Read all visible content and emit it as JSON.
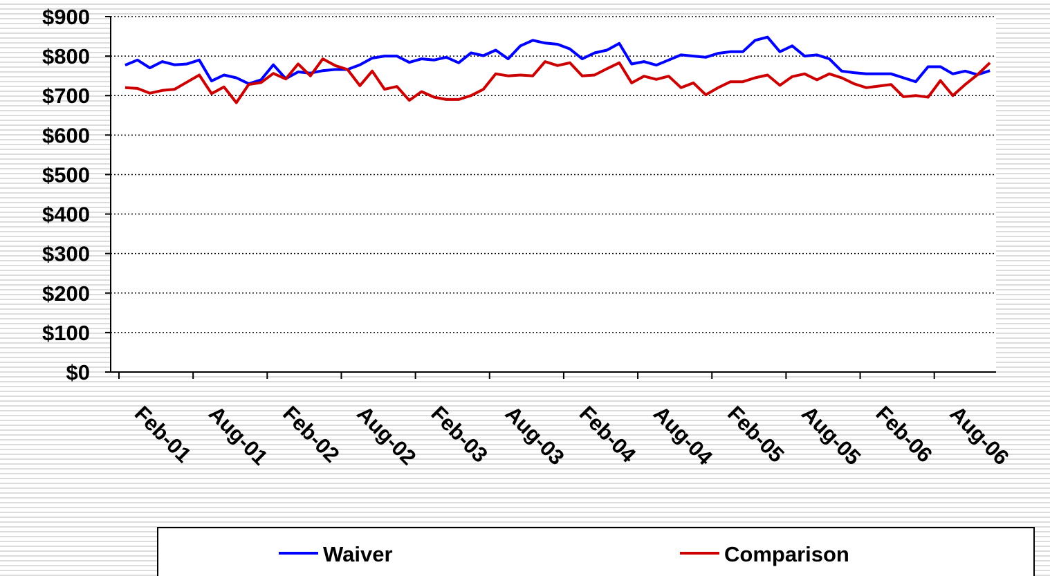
{
  "chart_data": {
    "type": "line",
    "categories": [
      null,
      "Feb-01",
      null,
      null,
      null,
      null,
      null,
      "Aug-01",
      null,
      null,
      null,
      null,
      null,
      "Feb-02",
      null,
      null,
      null,
      null,
      null,
      "Aug-02",
      null,
      null,
      null,
      null,
      null,
      "Feb-03",
      null,
      null,
      null,
      null,
      null,
      "Aug-03",
      null,
      null,
      null,
      null,
      null,
      "Feb-04",
      null,
      null,
      null,
      null,
      null,
      "Aug-04",
      null,
      null,
      null,
      null,
      null,
      "Feb-05",
      null,
      null,
      null,
      null,
      null,
      "Aug-05",
      null,
      null,
      null,
      null,
      null,
      "Feb-06",
      null,
      null,
      null,
      null,
      null,
      "Aug-06",
      null,
      null,
      null
    ],
    "series": [
      {
        "name": "Waiver",
        "color": "#0000ff",
        "values": [
          777,
          790,
          770,
          786,
          778,
          780,
          790,
          737,
          752,
          745,
          730,
          740,
          778,
          743,
          760,
          757,
          763,
          766,
          766,
          778,
          795,
          800,
          800,
          784,
          793,
          790,
          797,
          783,
          808,
          801,
          815,
          793,
          826,
          840,
          833,
          830,
          818,
          793,
          808,
          815,
          832,
          780,
          786,
          777,
          790,
          803,
          800,
          797,
          807,
          811,
          811,
          840,
          848,
          811,
          826,
          800,
          803,
          793,
          762,
          758,
          755,
          755,
          755,
          745,
          735,
          773,
          773,
          755,
          762,
          753,
          763
        ]
      },
      {
        "name": "Comparison",
        "color": "#cc0000",
        "values": [
          720,
          718,
          706,
          713,
          716,
          734,
          752,
          705,
          722,
          682,
          728,
          733,
          756,
          742,
          780,
          750,
          793,
          776,
          766,
          725,
          762,
          716,
          723,
          688,
          710,
          696,
          690,
          690,
          700,
          716,
          755,
          750,
          752,
          750,
          786,
          776,
          783,
          750,
          752,
          768,
          783,
          732,
          749,
          741,
          749,
          720,
          732,
          702,
          720,
          735,
          735,
          745,
          752,
          726,
          748,
          755,
          740,
          755,
          745,
          730,
          720,
          724,
          728,
          697,
          700,
          696,
          738,
          700,
          728,
          753,
          783
        ]
      }
    ],
    "ylim": [
      0,
      900
    ],
    "yticks": [
      {
        "value": 0,
        "label": "$0"
      },
      {
        "value": 100,
        "label": "$100"
      },
      {
        "value": 200,
        "label": "$200"
      },
      {
        "value": 300,
        "label": "$300"
      },
      {
        "value": 400,
        "label": "$400"
      },
      {
        "value": 500,
        "label": "$500"
      },
      {
        "value": 600,
        "label": "$600"
      },
      {
        "value": 700,
        "label": "$700"
      },
      {
        "value": 800,
        "label": "$800"
      },
      {
        "value": 900,
        "label": "$900"
      }
    ],
    "grid": true,
    "legend": "bottom"
  }
}
